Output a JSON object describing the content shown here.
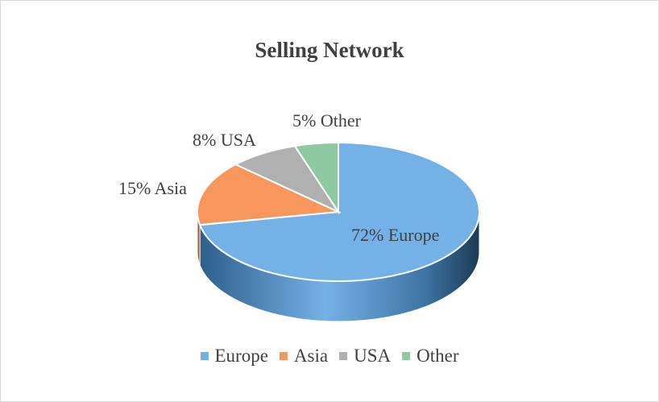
{
  "chart_data": {
    "type": "pie",
    "style": "3d",
    "title": "Selling Network",
    "categories": [
      "Europe",
      "Asia",
      "USA",
      "Other"
    ],
    "values": [
      72,
      15,
      8,
      5
    ],
    "unit": "%",
    "colors": [
      "#74b1e6",
      "#f7975d",
      "#b0b0b0",
      "#8fc9a1"
    ],
    "data_labels": [
      "72% Europe",
      "15% Asia",
      "8% USA",
      "5% Other"
    ],
    "legend_position": "bottom"
  }
}
